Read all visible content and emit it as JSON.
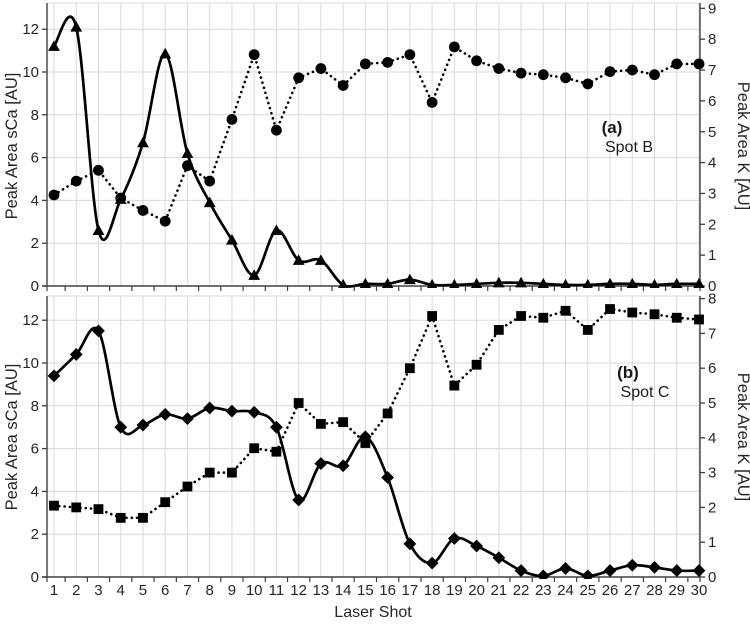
{
  "chart_data": {
    "type": "line",
    "title": "",
    "xlabel": "Laser Shot",
    "x": [
      1,
      2,
      3,
      4,
      5,
      6,
      7,
      8,
      9,
      10,
      11,
      12,
      13,
      14,
      15,
      16,
      17,
      18,
      19,
      20,
      21,
      22,
      23,
      24,
      25,
      26,
      27,
      28,
      29,
      30
    ],
    "grid": true,
    "colors": {
      "series": "#000000",
      "grid": "#d9d9d9",
      "axis": "#404040",
      "text": "#262626"
    },
    "panels": [
      {
        "annotation_label": "(a)",
        "annotation_spot": "Spot B",
        "left_axis": {
          "label": "Peak Area sCa [AU]",
          "range": [
            0,
            12
          ],
          "ticks": [
            0,
            2,
            4,
            6,
            8,
            10,
            12
          ]
        },
        "right_axis": {
          "label": "Peak Area K [AU]",
          "range": [
            0,
            9
          ],
          "ticks": [
            0,
            1,
            2,
            3,
            4,
            5,
            6,
            7,
            8,
            9
          ]
        },
        "series": [
          {
            "name": "sCa",
            "axis": "left",
            "marker": "triangle",
            "line_style": "solid",
            "values": [
              11.2,
              12.1,
              2.6,
              4.05,
              6.7,
              10.85,
              6.2,
              3.9,
              2.15,
              0.5,
              2.6,
              1.2,
              1.2,
              0.05,
              0.1,
              0.1,
              0.3,
              0.05,
              0.05,
              0.1,
              0.15,
              0.15,
              0.1,
              0.05,
              0.05,
              0.1,
              0.1,
              0.05,
              0.1,
              0.1
            ]
          },
          {
            "name": "K",
            "axis": "right",
            "marker": "circle",
            "line_style": "dotted",
            "values": [
              2.95,
              3.4,
              3.75,
              2.85,
              2.45,
              2.1,
              3.9,
              3.4,
              5.4,
              7.5,
              5.05,
              6.75,
              7.05,
              6.5,
              7.2,
              7.25,
              7.5,
              5.95,
              7.75,
              7.3,
              7.05,
              6.9,
              6.85,
              6.75,
              6.55,
              6.95,
              7.0,
              6.85,
              7.2,
              7.2
            ]
          }
        ]
      },
      {
        "annotation_label": "(b)",
        "annotation_spot": "Spot C",
        "left_axis": {
          "label": "Peak Area sCa [AU]",
          "range": [
            0,
            12
          ],
          "ticks": [
            0,
            2,
            4,
            6,
            8,
            10,
            12
          ]
        },
        "right_axis": {
          "label": "Peak Area K [AU]",
          "range": [
            0,
            8
          ],
          "ticks": [
            0,
            1,
            2,
            3,
            4,
            5,
            6,
            7,
            8
          ]
        },
        "series": [
          {
            "name": "sCa",
            "axis": "left",
            "marker": "diamond",
            "line_style": "solid",
            "values": [
              9.4,
              10.4,
              11.5,
              7.0,
              7.1,
              7.6,
              7.4,
              7.9,
              7.75,
              7.7,
              7.0,
              3.6,
              5.3,
              5.2,
              6.55,
              4.65,
              1.55,
              0.65,
              1.8,
              1.45,
              0.9,
              0.3,
              0.05,
              0.4,
              0.05,
              0.3,
              0.55,
              0.45,
              0.3,
              0.3
            ]
          },
          {
            "name": "K",
            "axis": "right",
            "marker": "square",
            "line_style": "dotted",
            "values": [
              2.05,
              2.0,
              1.95,
              1.7,
              1.7,
              2.15,
              2.6,
              3.0,
              3.0,
              3.7,
              3.6,
              5.0,
              4.4,
              4.45,
              3.85,
              4.7,
              6.0,
              7.5,
              5.5,
              6.1,
              7.1,
              7.5,
              7.45,
              7.65,
              7.1,
              7.7,
              7.6,
              7.55,
              7.45,
              7.4
            ]
          }
        ]
      }
    ]
  }
}
